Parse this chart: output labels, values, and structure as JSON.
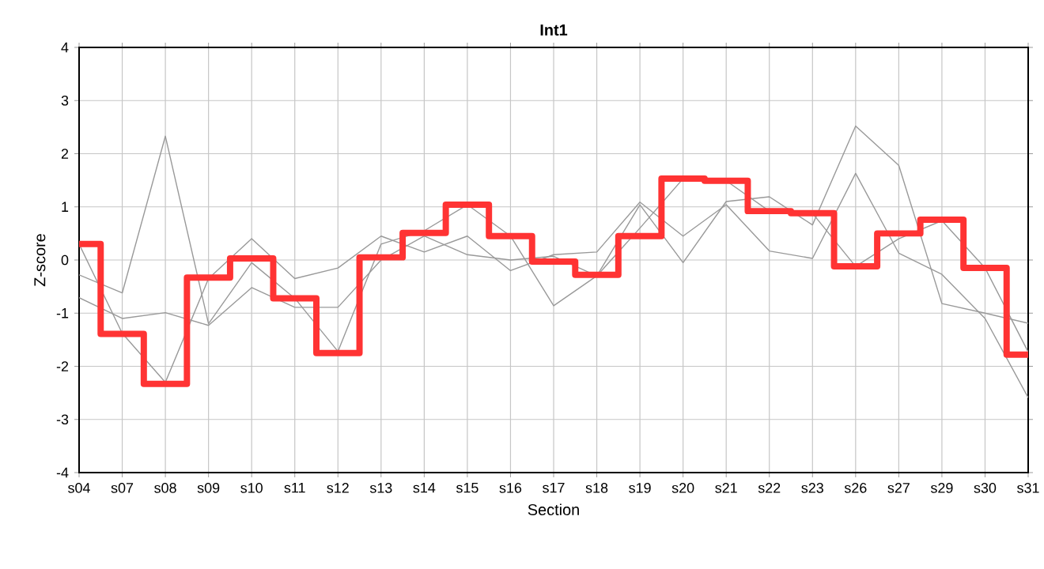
{
  "chart_data": {
    "type": "line",
    "title": "Int1",
    "xlabel": "Section",
    "ylabel": "Z-score",
    "categories": [
      "s04",
      "s07",
      "s08",
      "s09",
      "s10",
      "s11",
      "s12",
      "s13",
      "s14",
      "s15",
      "s16",
      "s17",
      "s18",
      "s19",
      "s20",
      "s21",
      "s22",
      "s23",
      "s26",
      "s27",
      "s29",
      "s30",
      "s31"
    ],
    "ylim": [
      -4,
      4
    ],
    "yticks": [
      -4,
      -3,
      -2,
      -1,
      0,
      1,
      2,
      3,
      4
    ],
    "grid": true,
    "series": [
      {
        "color": "#999999",
        "values": [
          -0.28,
          -0.62,
          2.33,
          -1.2,
          -0.05,
          -0.72,
          -1.72,
          0.3,
          0.55,
          1.04,
          0.45,
          -0.86,
          -0.3,
          1.04,
          -0.05,
          1.1,
          1.19,
          0.66,
          2.52,
          1.78,
          -0.82,
          -1.0,
          -1.19
        ]
      },
      {
        "color": "#999999",
        "values": [
          0.3,
          -1.38,
          -2.3,
          -0.35,
          0.4,
          -0.35,
          -0.15,
          0.45,
          0.15,
          0.45,
          -0.2,
          0.1,
          0.15,
          1.09,
          0.45,
          1.04,
          0.17,
          0.03,
          1.63,
          0.13,
          -0.27,
          -1.1,
          -2.59
        ]
      },
      {
        "color": "#999999",
        "values": [
          -0.71,
          -1.1,
          -0.99,
          -1.23,
          -0.52,
          -0.89,
          -0.89,
          0.0,
          0.45,
          0.1,
          0.0,
          0.07,
          -0.3,
          0.6,
          1.53,
          1.49,
          0.92,
          0.88,
          -0.12,
          0.4,
          0.74,
          -0.15,
          -1.73
        ]
      },
      {
        "type": "step",
        "color": "#ff3333",
        "values": [
          0.3,
          -1.39,
          -2.33,
          -0.33,
          0.03,
          -0.72,
          -1.75,
          0.05,
          0.51,
          1.04,
          0.45,
          -0.03,
          -0.28,
          0.45,
          1.53,
          1.49,
          0.92,
          0.88,
          -0.12,
          0.5,
          0.76,
          -0.15,
          -1.78
        ]
      }
    ]
  }
}
